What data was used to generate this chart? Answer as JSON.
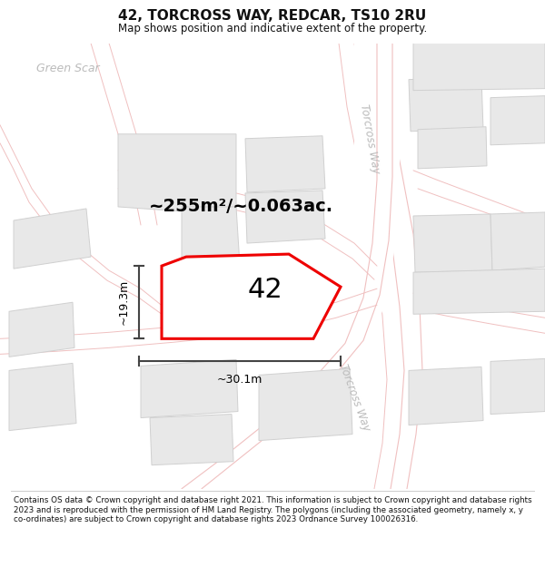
{
  "title": "42, TORCROSS WAY, REDCAR, TS10 2RU",
  "subtitle": "Map shows position and indicative extent of the property.",
  "footer": "Contains OS data © Crown copyright and database right 2021. This information is subject to Crown copyright and database rights 2023 and is reproduced with the permission of HM Land Registry. The polygons (including the associated geometry, namely x, y co-ordinates) are subject to Crown copyright and database rights 2023 Ordnance Survey 100026316.",
  "area_text": "~255m²/~0.063ac.",
  "label_42": "42",
  "dim_width": "~30.1m",
  "dim_height": "~19.3m",
  "road_label_upper": "Torcross Way",
  "road_label_lower": "Torcross Way",
  "green_scar_label": "Green Scar",
  "bg_color": "#f7f6f4",
  "road_fill": "#f7f0f0",
  "road_edge": "#f0c0c0",
  "block_fill": "#e8e8e8",
  "block_edge": "#d0d0d0",
  "highlight_color": "#ee0000",
  "dim_line_color": "#444444",
  "road_label_color": "#bbbbbb",
  "green_scar_color": "#bbbbbb",
  "footer_color": "#111111",
  "title_color": "#111111",
  "title_fontsize": 11,
  "subtitle_fontsize": 8.5,
  "area_fontsize": 14,
  "label_fontsize": 22,
  "dim_fontsize": 9,
  "road_label_fontsize": 8.5,
  "green_scar_fontsize": 9,
  "footer_fontsize": 6.3
}
